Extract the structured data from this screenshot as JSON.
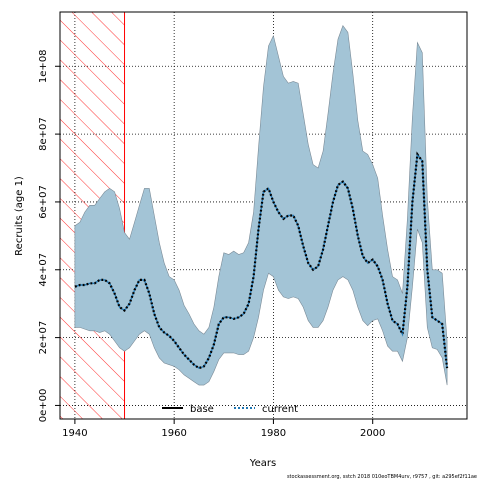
{
  "chart_data": {
    "type": "area",
    "xlabel": "Years",
    "ylabel": "Recruits (age 1)",
    "xlim": [
      1937,
      2019
    ],
    "ylim": [
      -4000000,
      116000000
    ],
    "x_ticks": [
      1940,
      1960,
      1980,
      2000
    ],
    "y_ticks": [
      {
        "value": 0,
        "label": "0e+00"
      },
      {
        "value": 20000000,
        "label": "2e+07"
      },
      {
        "value": 40000000,
        "label": "4e+07"
      },
      {
        "value": 60000000,
        "label": "6e+07"
      },
      {
        "value": 80000000,
        "label": "8e+07"
      },
      {
        "value": 100000000,
        "label": "1e+08"
      }
    ],
    "grid": "dotted",
    "legend": {
      "placement": "bottom-center",
      "entries": [
        {
          "label": "base",
          "style": "solid",
          "color": "#000000"
        },
        {
          "label": "current",
          "style": "dotted",
          "color": "#1f77b4"
        }
      ]
    },
    "shaded_period": {
      "x_start": 1937,
      "x_end": 1950,
      "fill": "red-hatched"
    },
    "colors": {
      "band": "#a3c4d6",
      "band_edge": "#7a8a96",
      "current_line": "#1f77b4",
      "hatch": "#ff0000"
    },
    "x": [
      1940,
      1941,
      1942,
      1943,
      1944,
      1945,
      1946,
      1947,
      1948,
      1949,
      1950,
      1951,
      1952,
      1953,
      1954,
      1955,
      1956,
      1957,
      1958,
      1959,
      1960,
      1961,
      1962,
      1963,
      1964,
      1965,
      1966,
      1967,
      1968,
      1969,
      1970,
      1971,
      1972,
      1973,
      1974,
      1975,
      1976,
      1977,
      1978,
      1979,
      1980,
      1981,
      1982,
      1983,
      1984,
      1985,
      1986,
      1987,
      1988,
      1989,
      1990,
      1991,
      1992,
      1993,
      1994,
      1995,
      1996,
      1997,
      1998,
      1999,
      2000,
      2001,
      2002,
      2003,
      2004,
      2005,
      2006,
      2007,
      2008,
      2009,
      2010,
      2011,
      2012,
      2013,
      2014,
      2015
    ],
    "series": [
      {
        "name": "current",
        "values": [
          35000000,
          35500000,
          35500000,
          36000000,
          36000000,
          37000000,
          37000000,
          36000000,
          33000000,
          29000000,
          28000000,
          30000000,
          34000000,
          37000000,
          37000000,
          33000000,
          27000000,
          23000000,
          21500000,
          20500000,
          19000000,
          17000000,
          15000000,
          13500000,
          12000000,
          11000000,
          11500000,
          14000000,
          18000000,
          24000000,
          26000000,
          26000000,
          25500000,
          26000000,
          27000000,
          30000000,
          38000000,
          52000000,
          63000000,
          64000000,
          60000000,
          57000000,
          55000000,
          56000000,
          56000000,
          53000000,
          47000000,
          42000000,
          40000000,
          41000000,
          46000000,
          53000000,
          60000000,
          65000000,
          66000000,
          64000000,
          58000000,
          50000000,
          44000000,
          42000000,
          43000000,
          41000000,
          37000000,
          30000000,
          25000000,
          24000000,
          21000000,
          35000000,
          60000000,
          74000000,
          72000000,
          40000000,
          26000000,
          25000000,
          24000000,
          11000000
        ],
        "lower": [
          23000000,
          23000000,
          22500000,
          22000000,
          22000000,
          21500000,
          22000000,
          21000000,
          19000000,
          17000000,
          16000000,
          17000000,
          19000000,
          21000000,
          22000000,
          21000000,
          17000000,
          14000000,
          12500000,
          12000000,
          11500000,
          10500000,
          9000000,
          8000000,
          7000000,
          6000000,
          6000000,
          7000000,
          10000000,
          13500000,
          15500000,
          15500000,
          15500000,
          15000000,
          15000000,
          16000000,
          20000000,
          26000000,
          34000000,
          39000000,
          38000000,
          34000000,
          32000000,
          31500000,
          32000000,
          31500000,
          29000000,
          25000000,
          23000000,
          23000000,
          25000000,
          29000000,
          34000000,
          37000000,
          38000000,
          37000000,
          34000000,
          29000000,
          25000000,
          23500000,
          25000000,
          25500000,
          22000000,
          17500000,
          16000000,
          16000000,
          13000000,
          20000000,
          35000000,
          52000000,
          48000000,
          23000000,
          17000000,
          16500000,
          14000000,
          6000000
        ],
        "upper": [
          53000000,
          54000000,
          57000000,
          59000000,
          59000000,
          61000000,
          63000000,
          64000000,
          63000000,
          58000000,
          51000000,
          49000000,
          54000000,
          59000000,
          64000000,
          64000000,
          56000000,
          48000000,
          42000000,
          38000000,
          37000000,
          34000000,
          29500000,
          27000000,
          24000000,
          22000000,
          21000000,
          23000000,
          29000000,
          38000000,
          45000000,
          44500000,
          45500000,
          44500000,
          45000000,
          48000000,
          57000000,
          76000000,
          94000000,
          106000000,
          109000000,
          103000000,
          97000000,
          95000000,
          95500000,
          95000000,
          86000000,
          77000000,
          71000000,
          70000000,
          75000000,
          86000000,
          98000000,
          108000000,
          112000000,
          110000000,
          98000000,
          84000000,
          75000000,
          74000000,
          71000000,
          67000000,
          56000000,
          46000000,
          38000000,
          37000000,
          33000000,
          55000000,
          85000000,
          107000000,
          104000000,
          61000000,
          40000000,
          40000000,
          39000000,
          19000000
        ]
      }
    ]
  },
  "footer": {
    "text": "stockassessment.org, sstch 2018 010eoTBM4urv, r9757 , git: a295ef2f11ae"
  }
}
